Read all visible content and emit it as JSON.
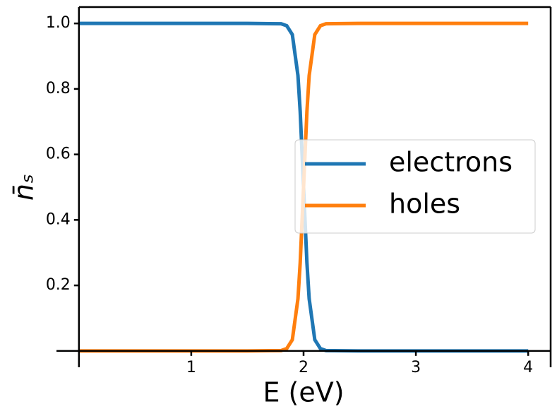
{
  "chart_data": {
    "type": "line",
    "x_label": "E (eV)",
    "y_label": "n̄ₛ",
    "x": [
      0,
      0.5,
      1,
      1.5,
      1.8,
      1.85,
      1.9,
      1.95,
      1.97,
      2.0,
      2.03,
      2.05,
      2.1,
      2.15,
      2.2,
      2.5,
      3,
      3.5,
      4
    ],
    "series": [
      {
        "name": "electrons",
        "color": "#1f77b4",
        "values": [
          1,
          1,
          1,
          1,
          0.999,
          0.993,
          0.966,
          0.841,
          0.731,
          0.5,
          0.269,
          0.159,
          0.034,
          0.007,
          0.001,
          0,
          0,
          0,
          0
        ]
      },
      {
        "name": "holes",
        "color": "#ff7f0e",
        "values": [
          0,
          0,
          0,
          0,
          0.001,
          0.007,
          0.034,
          0.159,
          0.269,
          0.5,
          0.731,
          0.841,
          0.966,
          0.993,
          0.999,
          1,
          1,
          1,
          1
        ]
      }
    ],
    "xlim": [
      -0.2,
      4.2
    ],
    "ylim": [
      -0.05,
      1.05
    ],
    "xticks": [
      1,
      2,
      3,
      4
    ],
    "yticks": [
      0.2,
      0.4,
      0.6,
      0.8,
      {
        "value": 1,
        "label": "1.0"
      }
    ],
    "legend": "center right",
    "grid": false
  }
}
